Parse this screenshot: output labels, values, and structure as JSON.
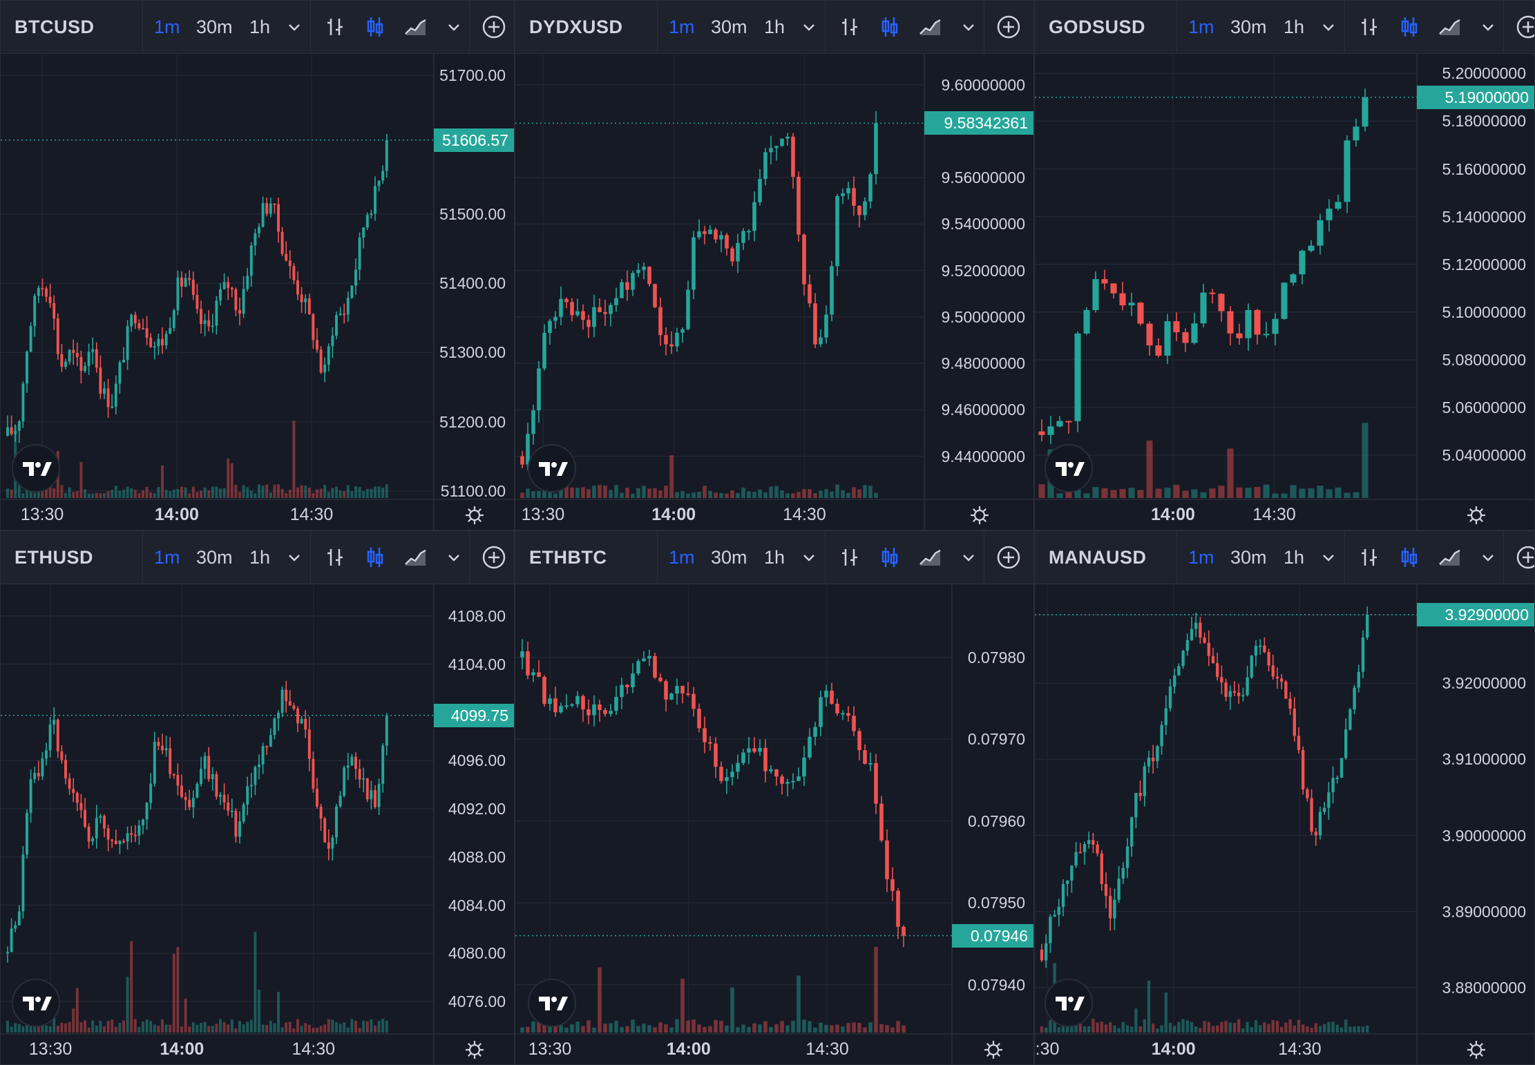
{
  "layout": {
    "intervals": [
      "1m",
      "30m",
      "1h"
    ],
    "active_interval": "1m",
    "icons": [
      "chevron-down-icon",
      "bar-style-icon",
      "candle-style-icon",
      "area-style-icon",
      "add-icon",
      "tradingview-logo",
      "settings-gear-icon"
    ]
  },
  "colors": {
    "up": "#26a69a",
    "down": "#ef5350",
    "background": "#161a25",
    "toolbar": "#1e222d",
    "accent": "#2962ff",
    "text": "#d1d4dc"
  },
  "panels": [
    {
      "symbol": "BTCUSD",
      "price_labels": [
        "51700.00",
        "51500.00",
        "51400.00",
        "51300.00",
        "51200.00",
        "51100.00"
      ],
      "last_price": "51606.57",
      "time_labels": [
        "13:30",
        "14:00",
        "14:30"
      ],
      "chart_data": {
        "type": "candlestick",
        "price_range": [
          51100,
          51720
        ],
        "last_price": 51606.57,
        "start_time": "13:30",
        "close_path": [
          51180,
          51195,
          51330,
          51400,
          51390,
          51280,
          51300,
          51270,
          51320,
          51240,
          51230,
          51300,
          51360,
          51340,
          51310,
          51320,
          51390,
          51410,
          51350,
          51330,
          51380,
          51400,
          51360,
          51440,
          51500,
          51520,
          51460,
          51410,
          51380,
          51330,
          51260,
          51350,
          51360,
          51420,
          51500,
          51530,
          51600
        ]
      }
    },
    {
      "symbol": "DYDXUSD",
      "price_labels": [
        "9.60000000",
        "9.56000000",
        "9.54000000",
        "9.52000000",
        "9.50000000",
        "9.48000000",
        "9.46000000",
        "9.44000000"
      ],
      "last_price": "9.58342361",
      "time_labels": [
        "13:30",
        "14:00",
        "14:30"
      ],
      "chart_data": {
        "type": "candlestick",
        "price_range": [
          9.425,
          9.61
        ],
        "last_price": 9.58342361,
        "start_time": "13:30",
        "close_path": [
          9.44,
          9.46,
          9.5,
          9.505,
          9.505,
          9.5,
          9.5,
          9.505,
          9.51,
          9.52,
          9.525,
          9.5,
          9.49,
          9.49,
          9.53,
          9.54,
          9.535,
          9.525,
          9.53,
          9.55,
          9.57,
          9.575,
          9.575,
          9.52,
          9.49,
          9.5,
          9.56,
          9.55,
          9.545,
          9.58
        ]
      }
    },
    {
      "symbol": "GODSUSD",
      "price_labels": [
        "5.20000000",
        "5.18000000",
        "5.16000000",
        "5.14000000",
        "5.12000000",
        "5.10000000",
        "5.08000000",
        "5.06000000",
        "5.04000000"
      ],
      "last_price": "5.19000000",
      "time_labels": [
        "14:00",
        "14:30"
      ],
      "chart_data": {
        "type": "candlestick",
        "price_range": [
          5.025,
          5.205
        ],
        "last_price": 5.19,
        "start_time": "13:40",
        "close_path": [
          5.05,
          5.05,
          5.05,
          5.1,
          5.11,
          5.11,
          5.1,
          5.1,
          5.09,
          5.08,
          5.1,
          5.09,
          5.1,
          5.11,
          5.1,
          5.09,
          5.1,
          5.09,
          5.1,
          5.12,
          5.12,
          5.13,
          5.14,
          5.15,
          5.18,
          5.18
        ]
      }
    },
    {
      "symbol": "ETHUSD",
      "price_labels": [
        "4108.00",
        "4104.00",
        "4096.00",
        "4092.00",
        "4088.00",
        "4084.00",
        "4080.00",
        "4076.00"
      ],
      "last_price": "4099.75",
      "time_labels": [
        "13:30",
        "14:00",
        "14:30"
      ],
      "chart_data": {
        "type": "candlestick",
        "price_range": [
          4074,
          4110
        ],
        "last_price": 4099.75,
        "start_time": "13:30",
        "close_path": [
          4080,
          4084,
          4094,
          4096,
          4099,
          4094,
          4092,
          4090,
          4091,
          4090,
          4089,
          4090,
          4092,
          4098,
          4096,
          4094,
          4092,
          4096,
          4094,
          4092,
          4090,
          4094,
          4096,
          4098,
          4102,
          4100,
          4098,
          4092,
          4088,
          4094,
          4096,
          4094,
          4092,
          4099
        ]
      }
    },
    {
      "symbol": "ETHBTC",
      "price_labels": [
        "0.07980",
        "0.07970",
        "0.07960",
        "0.07950",
        "0.07940"
      ],
      "last_price": "0.07946",
      "time_labels": [
        "13:30",
        "14:00",
        "14:30"
      ],
      "chart_data": {
        "type": "candlestick",
        "price_range": [
          0.07935,
          0.07988
        ],
        "last_price": 0.07946,
        "start_time": "13:30",
        "close_path": [
          0.0798,
          0.07977,
          0.07973,
          0.07975,
          0.07974,
          0.07972,
          0.07975,
          0.07978,
          0.07979,
          0.07976,
          0.07977,
          0.07972,
          0.07968,
          0.07964,
          0.0797,
          0.07968,
          0.07966,
          0.07964,
          0.0797,
          0.07976,
          0.07974,
          0.0797,
          0.07966,
          0.07952,
          0.07946
        ]
      }
    },
    {
      "symbol": "MANAUSD",
      "price_labels": [
        "3.92900000",
        "3.92000000",
        "3.91000000",
        "3.90000000",
        "3.89000000",
        "3.88000000"
      ],
      "last_price": "3.92900000",
      "time_labels": [
        ":30",
        "14:00",
        "14:30"
      ],
      "chart_data": {
        "type": "candlestick",
        "price_range": [
          3.875,
          3.932
        ],
        "last_price": 3.929,
        "start_time": "13:30",
        "close_path": [
          3.885,
          3.89,
          3.895,
          3.9,
          3.898,
          3.89,
          3.895,
          3.905,
          3.91,
          3.915,
          3.922,
          3.928,
          3.925,
          3.92,
          3.918,
          3.92,
          3.925,
          3.922,
          3.918,
          3.91,
          3.9,
          3.905,
          3.91,
          3.918,
          3.929
        ]
      }
    }
  ]
}
